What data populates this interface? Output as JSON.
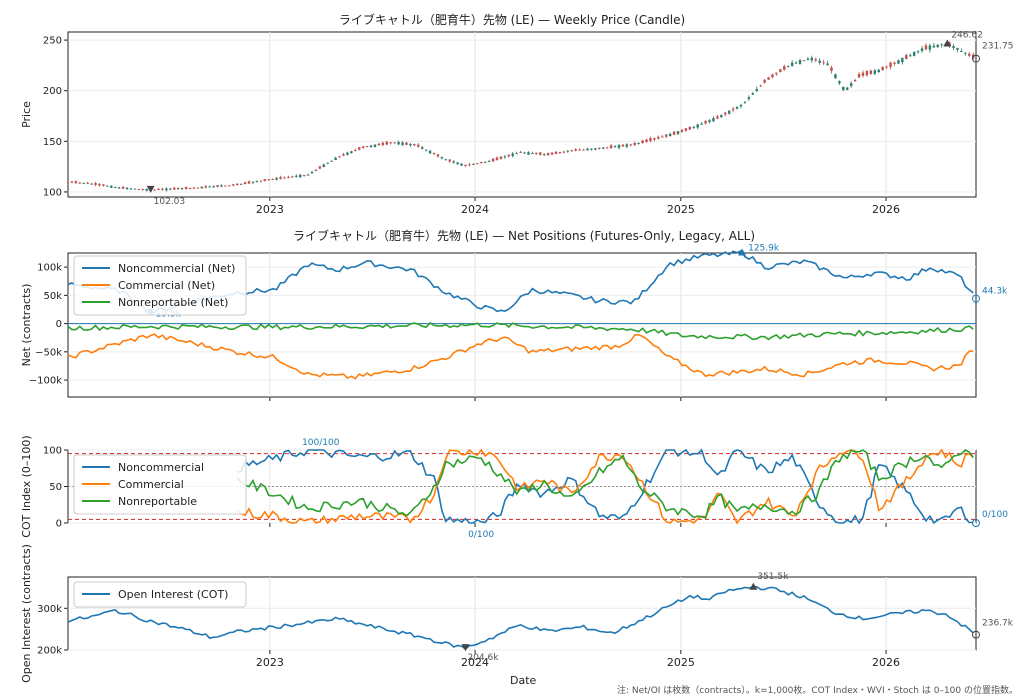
{
  "xlabel": "Date",
  "footnote": "注: Net/OI は枚数（contracts）。k=1,000枚。COT Index・WVI・Stoch は 0–100 の位置指数。",
  "colors": {
    "blue": "#1f77b4",
    "orange": "#ff7f0e",
    "green": "#2ca02c",
    "up": "#2f7d6b",
    "down": "#c0504d",
    "ref": "#d62728"
  },
  "chart_data": [
    {
      "type": "candlestick",
      "title": "ライブキャトル（肥育牛）先物 (LE) — Weekly Price (Candle)",
      "ylabel": "Price",
      "ylim": [
        95,
        258
      ],
      "yticks": [
        "100",
        "150",
        "200",
        "250"
      ],
      "xticks": [
        "2023",
        "2024",
        "2025",
        "2026"
      ],
      "annotations": {
        "min": "102.03",
        "max": "246.62",
        "last": "231.75"
      },
      "anchors": [
        [
          "2022-01-07",
          110
        ],
        [
          "2022-02-20",
          108
        ],
        [
          "2022-04-10",
          104
        ],
        [
          "2022-06-03",
          102.03
        ],
        [
          "2022-08-20",
          104
        ],
        [
          "2022-11-01",
          107
        ],
        [
          "2023-01-10",
          113
        ],
        [
          "2023-03-10",
          117
        ],
        [
          "2023-05-01",
          134
        ],
        [
          "2023-06-15",
          144
        ],
        [
          "2023-08-10",
          149
        ],
        [
          "2023-09-20",
          146
        ],
        [
          "2023-11-10",
          132
        ],
        [
          "2023-12-15",
          126
        ],
        [
          "2024-02-01",
          131
        ],
        [
          "2024-03-20",
          139
        ],
        [
          "2024-05-10",
          137
        ],
        [
          "2024-06-20",
          141
        ],
        [
          "2024-08-10",
          143
        ],
        [
          "2024-10-10",
          147
        ],
        [
          "2024-12-10",
          156
        ],
        [
          "2025-01-20",
          163
        ],
        [
          "2025-03-10",
          174
        ],
        [
          "2025-04-20",
          186
        ],
        [
          "2025-06-01",
          210
        ],
        [
          "2025-07-15",
          226
        ],
        [
          "2025-08-20",
          232
        ],
        [
          "2025-09-20",
          226
        ],
        [
          "2025-10-20",
          200
        ],
        [
          "2025-11-15",
          215
        ],
        [
          "2025-12-20",
          220
        ],
        [
          "2026-01-20",
          228
        ],
        [
          "2026-03-10",
          242
        ],
        [
          "2026-04-20",
          246.62
        ],
        [
          "2026-06-10",
          231.75
        ]
      ]
    },
    {
      "type": "line",
      "title": "ライブキャトル（肥育牛）先物 (LE) — Net Positions (Futures-Only, Legacy, ALL)",
      "ylabel": "Net (contracts)",
      "ylim": [
        -130000,
        125000
      ],
      "yticks": [
        "100k",
        "50k",
        "0",
        "−50k",
        "−100k"
      ],
      "annotations": {
        "max": "125.9k",
        "min": "19.5k",
        "last": "44.3k"
      },
      "series": [
        {
          "name": "Noncommercial (Net)",
          "anchors": [
            [
              "2022-01-07",
              70000
            ],
            [
              "2022-04-10",
              58000
            ],
            [
              "2022-06-03",
              19500
            ],
            [
              "2022-08-20",
              40000
            ],
            [
              "2022-11-01",
              55000
            ],
            [
              "2023-01-10",
              60000
            ],
            [
              "2023-03-10",
              105000
            ],
            [
              "2023-05-01",
              95000
            ],
            [
              "2023-06-20",
              108000
            ],
            [
              "2023-09-10",
              95000
            ],
            [
              "2023-11-10",
              55000
            ],
            [
              "2024-01-10",
              30000
            ],
            [
              "2024-02-20",
              20000
            ],
            [
              "2024-04-10",
              60000
            ],
            [
              "2024-06-20",
              50000
            ],
            [
              "2024-08-10",
              40000
            ],
            [
              "2024-10-10",
              38000
            ],
            [
              "2024-12-10",
              105000
            ],
            [
              "2025-02-10",
              120000
            ],
            [
              "2025-03-20",
              122000
            ],
            [
              "2025-04-20",
              125900
            ],
            [
              "2025-06-01",
              100000
            ],
            [
              "2025-08-10",
              110000
            ],
            [
              "2025-10-20",
              80000
            ],
            [
              "2025-12-10",
              90000
            ],
            [
              "2026-02-10",
              80000
            ],
            [
              "2026-03-20",
              100000
            ],
            [
              "2026-05-10",
              85000
            ],
            [
              "2026-06-10",
              44300
            ]
          ]
        },
        {
          "name": "Commercial (Net)",
          "anchors": [
            [
              "2022-01-07",
              -60000
            ],
            [
              "2022-03-20",
              -40000
            ],
            [
              "2022-06-03",
              -20000
            ],
            [
              "2022-08-20",
              -35000
            ],
            [
              "2022-11-01",
              -50000
            ],
            [
              "2023-01-10",
              -60000
            ],
            [
              "2023-03-10",
              -90000
            ],
            [
              "2023-06-01",
              -95000
            ],
            [
              "2023-09-10",
              -80000
            ],
            [
              "2023-11-10",
              -60000
            ],
            [
              "2024-01-10",
              -35000
            ],
            [
              "2024-02-20",
              -25000
            ],
            [
              "2024-04-10",
              -50000
            ],
            [
              "2024-06-20",
              -45000
            ],
            [
              "2024-09-10",
              -40000
            ],
            [
              "2024-10-20",
              -20000
            ],
            [
              "2024-12-10",
              -60000
            ],
            [
              "2025-02-10",
              -90000
            ],
            [
              "2025-04-20",
              -85000
            ],
            [
              "2025-06-01",
              -80000
            ],
            [
              "2025-08-10",
              -90000
            ],
            [
              "2025-10-20",
              -70000
            ],
            [
              "2025-12-10",
              -65000
            ],
            [
              "2026-02-10",
              -70000
            ],
            [
              "2026-03-20",
              -80000
            ],
            [
              "2026-05-10",
              -75000
            ],
            [
              "2026-06-10",
              -38000
            ]
          ]
        },
        {
          "name": "Nonreportable (Net)",
          "anchors": [
            [
              "2022-01-07",
              -8000
            ],
            [
              "2022-06-03",
              -5000
            ],
            [
              "2023-01-10",
              -6000
            ],
            [
              "2023-06-01",
              -5000
            ],
            [
              "2024-01-10",
              -2000
            ],
            [
              "2024-06-01",
              -6000
            ],
            [
              "2024-10-10",
              -10000
            ],
            [
              "2025-01-10",
              -22000
            ],
            [
              "2025-06-01",
              -24000
            ],
            [
              "2025-10-01",
              -18000
            ],
            [
              "2026-02-01",
              -15000
            ],
            [
              "2026-06-10",
              -8000
            ]
          ]
        }
      ]
    },
    {
      "type": "line",
      "ylabel": "COT Index (0–100)",
      "ylim": [
        0,
        100
      ],
      "yticks": [
        "0",
        "50",
        "100"
      ],
      "ref_lines": [
        5,
        95
      ],
      "annotations": {
        "max": "100/100",
        "min": "0/100",
        "last": "0/100"
      },
      "series": [
        {
          "name": "Noncommercial",
          "anchors": [
            [
              "2022-11-01",
              75
            ],
            [
              "2023-01-10",
              88
            ],
            [
              "2023-03-10",
              100
            ],
            [
              "2023-06-10",
              90
            ],
            [
              "2023-09-10",
              95
            ],
            [
              "2023-10-20",
              60
            ],
            [
              "2023-11-10",
              5
            ],
            [
              "2024-01-10",
              0
            ],
            [
              "2024-02-10",
              10
            ],
            [
              "2024-03-20",
              55
            ],
            [
              "2024-05-01",
              40
            ],
            [
              "2024-06-20",
              60
            ],
            [
              "2024-08-10",
              10
            ],
            [
              "2024-09-20",
              5
            ],
            [
              "2024-10-20",
              40
            ],
            [
              "2024-12-10",
              100
            ],
            [
              "2025-02-10",
              95
            ],
            [
              "2025-03-10",
              60
            ],
            [
              "2025-04-10",
              100
            ],
            [
              "2025-06-01",
              70
            ],
            [
              "2025-07-20",
              90
            ],
            [
              "2025-09-01",
              30
            ],
            [
              "2025-10-10",
              0
            ],
            [
              "2025-11-20",
              5
            ],
            [
              "2025-12-20",
              80
            ],
            [
              "2026-02-10",
              40
            ],
            [
              "2026-03-10",
              10
            ],
            [
              "2026-04-10",
              0
            ],
            [
              "2026-05-10",
              20
            ],
            [
              "2026-06-10",
              0
            ]
          ]
        },
        {
          "name": "Commercial",
          "anchors": [
            [
              "2022-11-01",
              15
            ],
            [
              "2023-01-10",
              10
            ],
            [
              "2023-03-10",
              0
            ],
            [
              "2023-06-10",
              10
            ],
            [
              "2023-09-10",
              5
            ],
            [
              "2023-10-20",
              40
            ],
            [
              "2023-11-10",
              95
            ],
            [
              "2024-01-10",
              100
            ],
            [
              "2024-02-10",
              90
            ],
            [
              "2024-03-20",
              45
            ],
            [
              "2024-05-01",
              60
            ],
            [
              "2024-06-20",
              40
            ],
            [
              "2024-08-10",
              90
            ],
            [
              "2024-09-20",
              95
            ],
            [
              "2024-10-20",
              60
            ],
            [
              "2024-12-10",
              0
            ],
            [
              "2025-02-10",
              5
            ],
            [
              "2025-03-10",
              40
            ],
            [
              "2025-04-10",
              0
            ],
            [
              "2025-06-01",
              30
            ],
            [
              "2025-07-20",
              10
            ],
            [
              "2025-09-01",
              70
            ],
            [
              "2025-10-10",
              100
            ],
            [
              "2025-11-20",
              95
            ],
            [
              "2025-12-20",
              20
            ],
            [
              "2026-02-10",
              60
            ],
            [
              "2026-03-10",
              90
            ],
            [
              "2026-04-10",
              100
            ],
            [
              "2026-05-10",
              80
            ],
            [
              "2026-06-10",
              100
            ]
          ]
        },
        {
          "name": "Nonreportable",
          "anchors": [
            [
              "2022-11-01",
              60
            ],
            [
              "2023-01-10",
              40
            ],
            [
              "2023-03-10",
              20
            ],
            [
              "2023-06-10",
              30
            ],
            [
              "2023-09-10",
              10
            ],
            [
              "2023-10-20",
              50
            ],
            [
              "2023-11-10",
              80
            ],
            [
              "2024-01-10",
              90
            ],
            [
              "2024-02-10",
              70
            ],
            [
              "2024-03-20",
              40
            ],
            [
              "2024-05-01",
              55
            ],
            [
              "2024-06-20",
              30
            ],
            [
              "2024-08-10",
              70
            ],
            [
              "2024-09-20",
              90
            ],
            [
              "2024-10-20",
              50
            ],
            [
              "2024-12-10",
              20
            ],
            [
              "2025-02-10",
              10
            ],
            [
              "2025-03-10",
              35
            ],
            [
              "2025-04-10",
              15
            ],
            [
              "2025-06-01",
              25
            ],
            [
              "2025-07-20",
              15
            ],
            [
              "2025-09-01",
              40
            ],
            [
              "2025-10-10",
              90
            ],
            [
              "2025-11-20",
              100
            ],
            [
              "2025-12-20",
              60
            ],
            [
              "2026-02-10",
              85
            ],
            [
              "2026-03-10",
              95
            ],
            [
              "2026-04-10",
              70
            ],
            [
              "2026-05-10",
              100
            ],
            [
              "2026-06-10",
              95
            ]
          ]
        }
      ]
    },
    {
      "type": "line",
      "ylabel": "Open Interest (contracts)",
      "ylim": [
        200000,
        375000
      ],
      "yticks": [
        "300k",
        "200k"
      ],
      "xticks": [
        "2023",
        "2024",
        "2025",
        "2026"
      ],
      "xlabel": "Date",
      "annotations": {
        "max": "351.5k",
        "min": "204.6k",
        "last": "236.7k"
      },
      "series": [
        {
          "name": "Open Interest (COT)",
          "anchors": [
            [
              "2022-01-07",
              270000
            ],
            [
              "2022-02-20",
              280000
            ],
            [
              "2022-04-01",
              295000
            ],
            [
              "2022-06-01",
              270000
            ],
            [
              "2022-08-01",
              250000
            ],
            [
              "2022-09-20",
              230000
            ],
            [
              "2022-11-10",
              245000
            ],
            [
              "2023-01-10",
              255000
            ],
            [
              "2023-03-10",
              265000
            ],
            [
              "2023-05-01",
              275000
            ],
            [
              "2023-06-20",
              260000
            ],
            [
              "2023-08-10",
              245000
            ],
            [
              "2023-10-01",
              230000
            ],
            [
              "2023-11-10",
              215000
            ],
            [
              "2023-12-15",
              204600
            ],
            [
              "2024-02-01",
              230000
            ],
            [
              "2024-03-20",
              260000
            ],
            [
              "2024-05-10",
              245000
            ],
            [
              "2024-07-10",
              255000
            ],
            [
              "2024-09-01",
              240000
            ],
            [
              "2024-10-20",
              270000
            ],
            [
              "2024-12-10",
              305000
            ],
            [
              "2025-01-20",
              330000
            ],
            [
              "2025-02-20",
              320000
            ],
            [
              "2025-03-20",
              340000
            ],
            [
              "2025-05-10",
              351500
            ],
            [
              "2025-06-20",
              345000
            ],
            [
              "2025-08-10",
              325000
            ],
            [
              "2025-10-01",
              290000
            ],
            [
              "2025-11-20",
              275000
            ],
            [
              "2026-01-10",
              285000
            ],
            [
              "2026-03-10",
              295000
            ],
            [
              "2026-04-20",
              285000
            ],
            [
              "2026-06-10",
              236700
            ]
          ]
        }
      ]
    }
  ]
}
